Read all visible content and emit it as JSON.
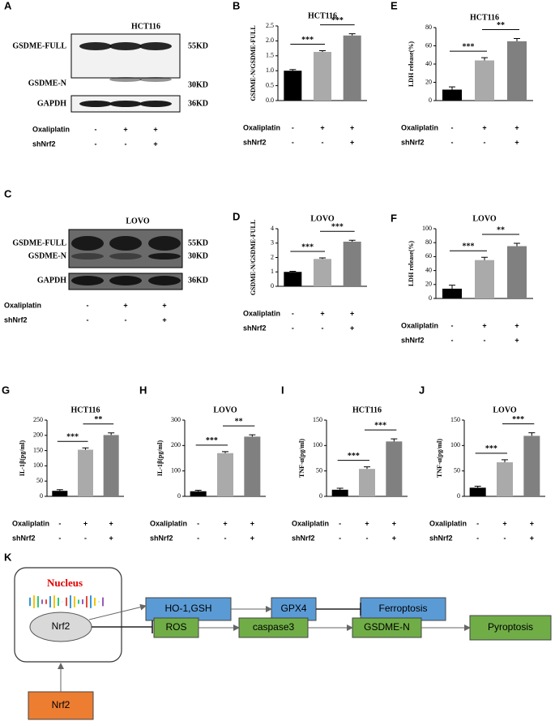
{
  "chart_data": [
    {
      "type": "bar",
      "panel": "B",
      "title": "HCT116",
      "y_label": "GSDME-N/GSDME-FULL",
      "categories": [
        null,
        null,
        null
      ],
      "values": [
        1.0,
        1.63,
        2.18
      ],
      "errors": [
        0.04,
        0.04,
        0.06
      ],
      "colors": [
        "#000000",
        "#aaaaaa",
        "#808080"
      ],
      "ylim": [
        0,
        2.5
      ],
      "yticks": [
        {
          "value": 0,
          "label": "0.0"
        },
        0.5,
        {
          "value": 1,
          "label": "1.0"
        },
        1.5,
        {
          "value": 2,
          "label": "2.0"
        },
        2.5
      ],
      "significance": [
        "***",
        "***"
      ],
      "conditions": [
        {
          "name": "Oxaliplatin",
          "signs": [
            "-",
            "+",
            "+"
          ]
        },
        {
          "name": "shNrf2",
          "signs": [
            "-",
            "-",
            "+"
          ]
        }
      ]
    },
    {
      "type": "bar",
      "panel": "E",
      "title": "HCT116",
      "y_label": "LDH release(%)",
      "categories": [
        null,
        null,
        null
      ],
      "values": [
        12,
        44,
        65
      ],
      "errors": [
        3,
        3,
        3
      ],
      "colors": [
        "#000000",
        "#aaaaaa",
        "#808080"
      ],
      "ylim": [
        0,
        80
      ],
      "yticks": [
        0,
        20,
        40,
        60,
        80
      ],
      "significance": [
        "***",
        "**"
      ],
      "conditions": [
        {
          "name": "Oxaliplatin",
          "signs": [
            "-",
            "+",
            "+"
          ]
        },
        {
          "name": "shNrf2",
          "signs": [
            "-",
            "-",
            "+"
          ]
        }
      ]
    },
    {
      "type": "bar",
      "panel": "D",
      "title": "LOVO",
      "y_label": "GSDME-N/GSDME-FULL",
      "categories": [
        null,
        null,
        null
      ],
      "values": [
        1.0,
        1.9,
        3.1
      ],
      "errors": [
        0.04,
        0.07,
        0.1
      ],
      "colors": [
        "#000000",
        "#aaaaaa",
        "#808080"
      ],
      "ylim": [
        0,
        4
      ],
      "yticks": [
        0,
        1,
        2,
        3,
        4
      ],
      "significance": [
        "***",
        "***"
      ],
      "conditions": [
        {
          "name": "Oxaliplatin",
          "signs": [
            "-",
            "+",
            "+"
          ]
        },
        {
          "name": "shNrf2",
          "signs": [
            "-",
            "-",
            "+"
          ]
        }
      ]
    },
    {
      "type": "bar",
      "panel": "F",
      "title": "LOVO",
      "y_label": "LDH release(%)",
      "categories": [
        null,
        null,
        null
      ],
      "values": [
        14,
        55,
        75
      ],
      "errors": [
        5,
        4,
        4
      ],
      "colors": [
        "#000000",
        "#aaaaaa",
        "#808080"
      ],
      "ylim": [
        0,
        100
      ],
      "yticks": [
        0,
        20,
        40,
        60,
        80,
        100
      ],
      "significance": [
        "***",
        "**"
      ],
      "conditions": [
        {
          "name": "Oxaliplatin",
          "signs": [
            "-",
            "+",
            "+"
          ]
        },
        {
          "name": "shNrf2",
          "signs": [
            "-",
            "-",
            "+"
          ]
        }
      ]
    },
    {
      "type": "bar",
      "panel": "G",
      "title": "HCT116",
      "y_label": "IL-1β(pg/ml)",
      "categories": [
        null,
        null,
        null
      ],
      "values": [
        18,
        153,
        201
      ],
      "errors": [
        4,
        6,
        7
      ],
      "colors": [
        "#000000",
        "#aaaaaa",
        "#808080"
      ],
      "ylim": [
        0,
        250
      ],
      "yticks": [
        0,
        50,
        100,
        150,
        200,
        250
      ],
      "significance": [
        "***",
        "**"
      ],
      "conditions": [
        {
          "name": "Oxaliplatin",
          "signs": [
            "-",
            "+",
            "+"
          ]
        },
        {
          "name": "shNrf2",
          "signs": [
            "-",
            "-",
            "+"
          ]
        }
      ]
    },
    {
      "type": "bar",
      "panel": "H",
      "title": "LOVO",
      "y_label": "IL-1β(pg/ml)",
      "categories": [
        null,
        null,
        null
      ],
      "values": [
        20,
        170,
        235
      ],
      "errors": [
        4,
        6,
        7
      ],
      "colors": [
        "#000000",
        "#aaaaaa",
        "#808080"
      ],
      "ylim": [
        0,
        300
      ],
      "yticks": [
        0,
        100,
        200,
        300
      ],
      "significance": [
        "***",
        "**"
      ],
      "conditions": [
        {
          "name": "Oxaliplatin",
          "signs": [
            "-",
            "+",
            "+"
          ]
        },
        {
          "name": "shNrf2",
          "signs": [
            "-",
            "-",
            "+"
          ]
        }
      ]
    },
    {
      "type": "bar",
      "panel": "I",
      "title": "HCT116",
      "y_label": "TNF-α(pg/ml)",
      "categories": [
        null,
        null,
        null
      ],
      "values": [
        13,
        54,
        108
      ],
      "errors": [
        3,
        4,
        5
      ],
      "colors": [
        "#000000",
        "#aaaaaa",
        "#808080"
      ],
      "ylim": [
        0,
        150
      ],
      "yticks": [
        0,
        50,
        100,
        150
      ],
      "significance": [
        "***",
        "***"
      ],
      "conditions": [
        {
          "name": "Oxaliplatin",
          "signs": [
            "-",
            "+",
            "+"
          ]
        },
        {
          "name": "shNrf2",
          "signs": [
            "-",
            "-",
            "+"
          ]
        }
      ]
    },
    {
      "type": "bar",
      "panel": "J",
      "title": "LOVO",
      "y_label": "TNF-α(pg/ml)",
      "categories": [
        null,
        null,
        null
      ],
      "values": [
        17,
        67,
        119
      ],
      "errors": [
        3,
        5,
        6
      ],
      "colors": [
        "#000000",
        "#aaaaaa",
        "#808080"
      ],
      "ylim": [
        0,
        150
      ],
      "yticks": [
        0,
        50,
        100,
        150
      ],
      "significance": [
        "***",
        "***"
      ],
      "conditions": [
        {
          "name": "Oxaliplatin",
          "signs": [
            "-",
            "+",
            "+"
          ]
        },
        {
          "name": "shNrf2",
          "signs": [
            "-",
            "-",
            "+"
          ]
        }
      ]
    }
  ],
  "blots": [
    {
      "panel": "A",
      "title": "HCT116",
      "bands": [
        {
          "name": "GSDME-FULL",
          "size": "55KD"
        },
        {
          "name": "GSDME-N",
          "size": "30KD"
        },
        {
          "name": "GAPDH",
          "size": "36KD"
        }
      ],
      "conditions": [
        {
          "name": "Oxaliplatin",
          "signs": [
            "-",
            "+",
            "+"
          ]
        },
        {
          "name": "shNrf2",
          "signs": [
            "-",
            "-",
            "+"
          ]
        }
      ]
    },
    {
      "panel": "C",
      "title": "LOVO",
      "bands": [
        {
          "name": "GSDME-FULL",
          "size": "55KD"
        },
        {
          "name": "GSDME-N",
          "size": "30KD"
        },
        {
          "name": "GAPDH",
          "size": "36KD"
        }
      ],
      "conditions": [
        {
          "name": "Oxaliplatin",
          "signs": [
            "-",
            "+",
            "+"
          ]
        },
        {
          "name": "shNrf2",
          "signs": [
            "-",
            "-",
            "+"
          ]
        }
      ]
    }
  ],
  "diagram": {
    "panel": "K",
    "compartment": "Nucleus",
    "nodes": [
      {
        "label": "Nrf2",
        "color": "#d9d9d9"
      },
      {
        "label": "Nrf2",
        "color": "#ed7d31"
      },
      {
        "label": "HO-1,GSH",
        "color": "#5b9bd5"
      },
      {
        "label": "GPX4",
        "color": "#5b9bd5"
      },
      {
        "label": "Ferroptosis",
        "color": "#5b9bd5"
      },
      {
        "label": "ROS",
        "color": "#70ad47"
      },
      {
        "label": "caspase3",
        "color": "#70ad47"
      },
      {
        "label": "GSDME-N",
        "color": "#70ad47"
      },
      {
        "label": "Pyroptosis",
        "color": "#70ad47"
      }
    ]
  }
}
